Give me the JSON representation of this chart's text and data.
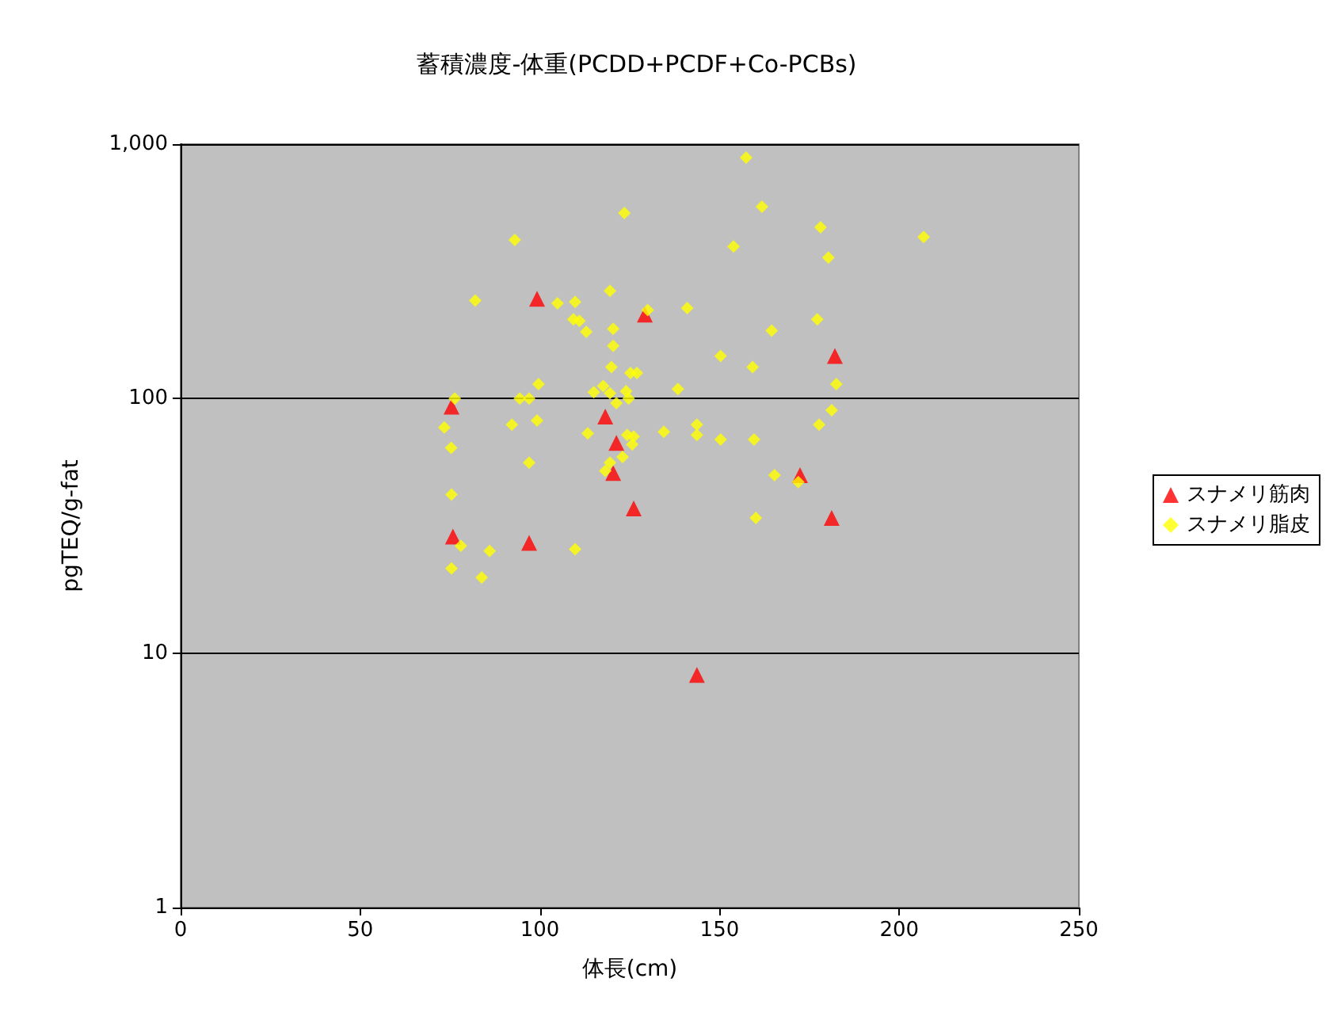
{
  "chart_data": {
    "type": "scatter",
    "title": "蓄積濃度-体重(PCDD+PCDF+Co-PCBs)",
    "xlabel": "体長(cm)",
    "ylabel": "pgTEQ/g-fat",
    "xlim": [
      0,
      250
    ],
    "xticks": [
      0,
      50,
      100,
      150,
      200,
      250
    ],
    "ylim": [
      1,
      1000
    ],
    "yticks": [
      1,
      10,
      100,
      {
        "value": 1000,
        "label": "1,000"
      }
    ],
    "log": "y",
    "grid": "y",
    "legend": "right",
    "series": [
      {
        "name": "スナメリ筋肉",
        "color": "#ff0000",
        "marker": "triangle",
        "x": [
          75.4,
          99.2,
          129.2,
          75.8,
          97,
          118.2,
          121.3,
          120.4,
          126.1,
          143.7,
          172.4,
          181.2,
          182.1
        ],
        "values": [
          93,
          247,
          214,
          28.7,
          27.1,
          85,
          67,
          51,
          37,
          8.2,
          50,
          34,
          147
        ]
      },
      {
        "name": "スナメリ脂皮",
        "color": "#ffff00",
        "marker": "diamond",
        "x": [
          157.4,
          161.8,
          123.5,
          153.9,
          93,
          178.1,
          180.3,
          206.8,
          82,
          104.9,
          109.8,
          119.5,
          130,
          141,
          177.2,
          109.3,
          111,
          112.9,
          120.4,
          120.4,
          164.5,
          150.3,
          119.9,
          159.2,
          125.2,
          127,
          99.6,
          182.5,
          76.3,
          94.4,
          97,
          115,
          117.6,
          119.5,
          121.3,
          124,
          124.7,
          138.4,
          181.2,
          73.4,
          92.2,
          99.2,
          75.3,
          97,
          113.3,
          124.3,
          125.7,
          126.1,
          134.5,
          143.7,
          143.7,
          150.3,
          159.6,
          165.3,
          177.7,
          171.9,
          123,
          119.5,
          118.2,
          160.1,
          75.4,
          109.8,
          78,
          86,
          75.4,
          83.8
        ],
        "values": [
          885,
          568,
          536,
          396,
          420,
          471,
          358,
          432,
          243,
          237,
          240,
          265,
          223,
          227,
          205,
          205,
          202,
          183,
          188,
          161,
          185,
          147,
          133,
          133,
          126,
          126,
          114,
          114,
          100,
          100,
          100,
          106,
          112,
          105,
          96,
          107,
          100,
          109,
          90,
          77,
          79,
          82,
          64,
          56,
          73,
          72,
          66,
          71,
          74,
          79,
          72,
          69,
          69,
          50,
          79,
          47,
          59,
          56,
          52,
          34,
          42,
          25.6,
          26.4,
          25.2,
          21.5,
          19.8
        ]
      }
    ]
  }
}
